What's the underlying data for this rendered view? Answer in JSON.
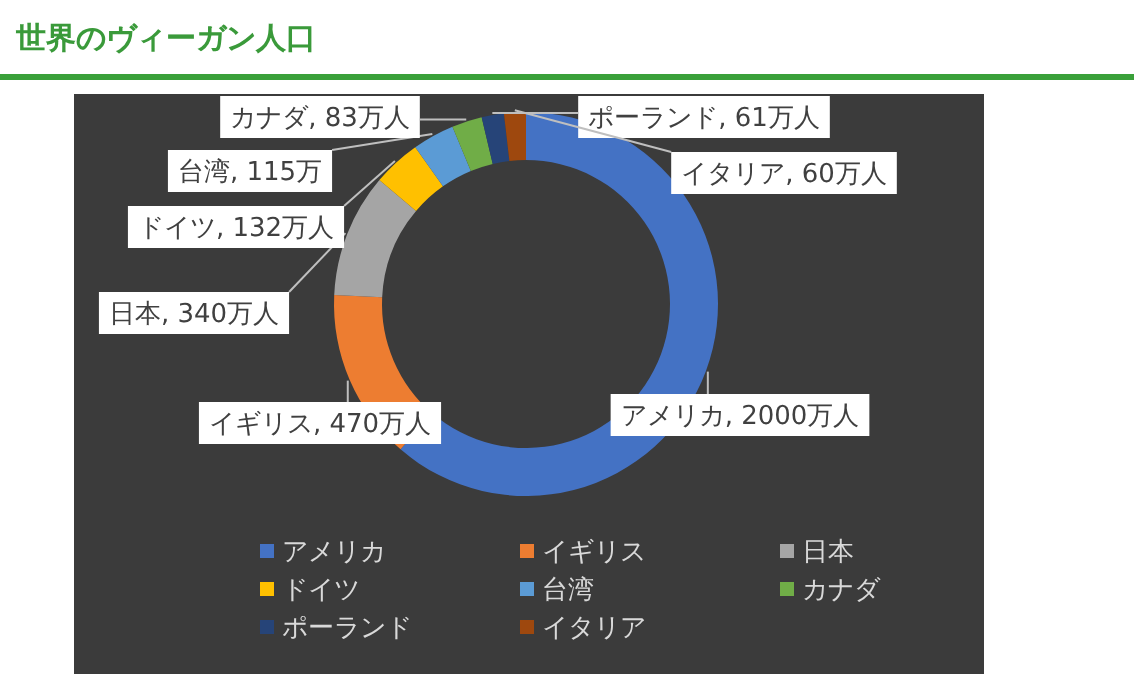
{
  "chart_data": {
    "type": "donut",
    "title": "世界のヴィーガン人口",
    "categories": [
      "アメリカ",
      "イギリス",
      "日本",
      "ドイツ",
      "台湾",
      "カナダ",
      "ポーランド",
      "イタリア"
    ],
    "values": [
      2000,
      470,
      340,
      132,
      115,
      83,
      61,
      60
    ],
    "colors": [
      "#4472c4",
      "#ed7d31",
      "#a5a5a5",
      "#ffc000",
      "#5b9bd5",
      "#70ad47",
      "#264478",
      "#9e480e"
    ],
    "value_labels": [
      "アメリカ, 2000万人",
      "イギリス, 470万人",
      "日本, 340万人",
      "ドイツ, 132万人",
      "台湾, 115万",
      "カナダ, 83万人",
      "ポーランド, 61万人",
      "イタリア, 60万人"
    ],
    "legend": "bottom"
  }
}
